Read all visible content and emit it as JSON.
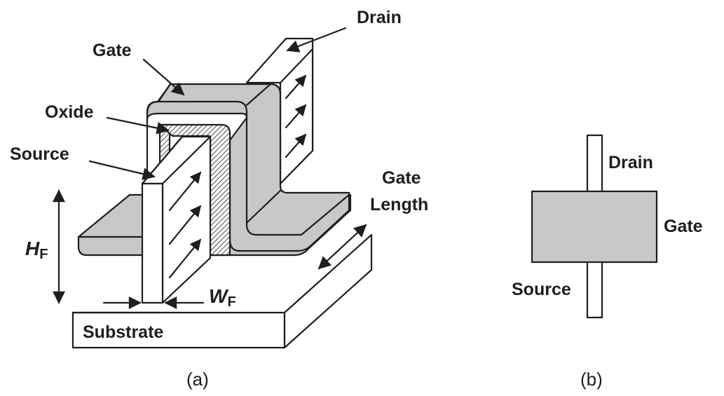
{
  "panel_a": {
    "labels": {
      "drain": "Drain",
      "gate": "Gate",
      "oxide": "Oxide",
      "source": "Source",
      "gate_length_line1": "Gate",
      "gate_length_line2": "Length",
      "height_main": "H",
      "height_sub": "F",
      "width_main": "W",
      "width_sub": "F",
      "substrate": "Substrate"
    },
    "caption": "(a)"
  },
  "panel_b": {
    "labels": {
      "drain": "Drain",
      "gate": "Gate",
      "source": "Source"
    },
    "caption": "(b)"
  },
  "colors": {
    "gate_fill": "#c8c8c8",
    "fin_fill": "#ffffff",
    "line": "#1e1e1e",
    "hatch": "#1e1e1e"
  }
}
